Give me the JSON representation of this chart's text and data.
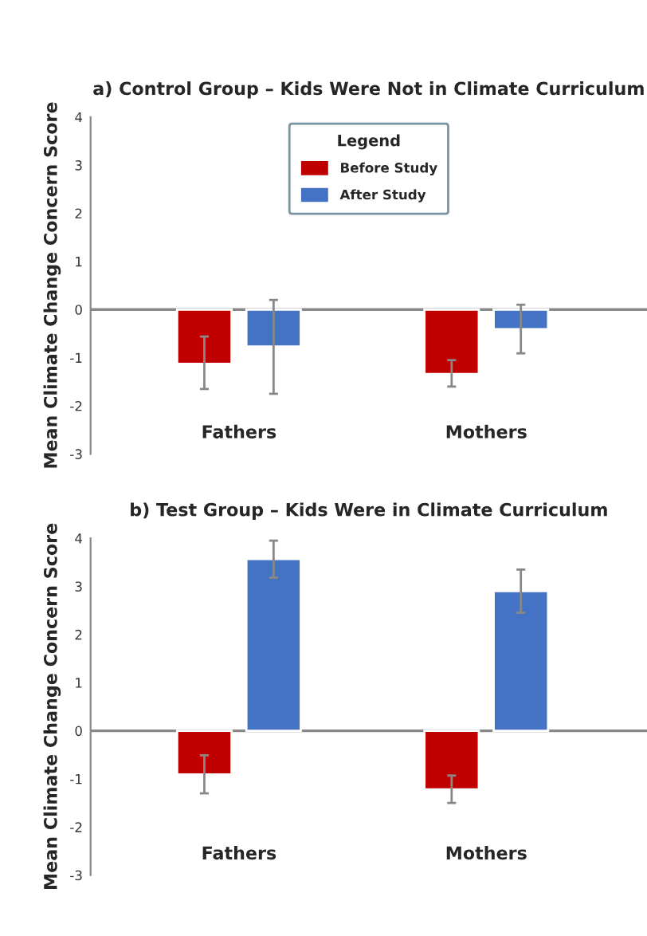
{
  "chart_data": [
    {
      "type": "bar",
      "title": "a) Control Group – Kids Were Not in Climate Curriculum",
      "ylabel": "Mean Climate Change Concern Score",
      "legend_title": "Legend",
      "categories": [
        "Fathers",
        "Mothers"
      ],
      "series": [
        {
          "name": "Before Study",
          "color": "#c00000",
          "values": [
            -1.13,
            -1.34
          ],
          "errors": [
            [
              -1.65,
              -0.56
            ],
            [
              -1.6,
              -1.05
            ]
          ]
        },
        {
          "name": "After Study",
          "color": "#4472c4",
          "values": [
            -0.77,
            -0.41
          ],
          "errors": [
            [
              -1.75,
              0.2
            ],
            [
              -0.91,
              0.1
            ]
          ]
        }
      ],
      "ylim": [
        -3,
        4
      ],
      "yticks": [
        -3,
        -2,
        -1,
        0,
        1,
        2,
        3,
        4
      ],
      "legend": "top",
      "grid": false,
      "ref_lines": [
        {
          "axis": "y",
          "value": 0,
          "color": "#888888"
        }
      ]
    },
    {
      "type": "bar",
      "title": "b) Test Group – Kids Were in Climate Curriculum",
      "ylabel": "Mean Climate Change Concern Score",
      "categories": [
        "Fathers",
        "Mothers"
      ],
      "series": [
        {
          "color": "#c00000",
          "values": [
            -0.91,
            -1.22
          ],
          "errors": [
            [
              -1.3,
              -0.51
            ],
            [
              -1.5,
              -0.93
            ]
          ]
        },
        {
          "color": "#4472c4",
          "values": [
            3.57,
            2.9
          ],
          "errors": [
            [
              3.18,
              3.95
            ],
            [
              2.45,
              3.35
            ]
          ]
        }
      ],
      "ylim": [
        -3,
        4
      ],
      "yticks": [
        -3,
        -2,
        -1,
        0,
        1,
        2,
        3,
        4
      ],
      "legend": false,
      "grid": false,
      "ref_lines": [
        {
          "axis": "y",
          "value": 0,
          "color": "#888888"
        }
      ]
    }
  ]
}
